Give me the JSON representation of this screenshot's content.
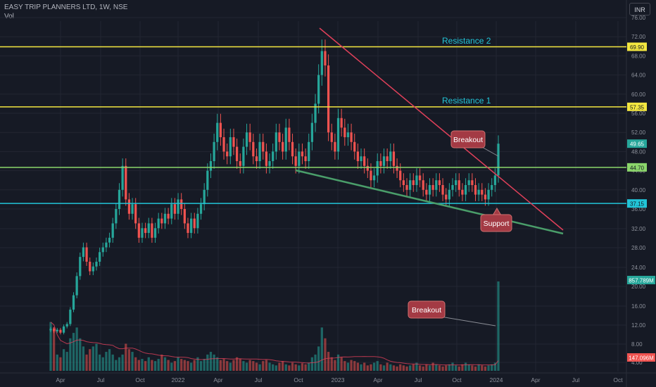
{
  "header": {
    "title": "EASY TRIP PLANNERS LTD, 1W, NSE",
    "volume_label": "Vol",
    "currency": "INR"
  },
  "colors": {
    "background": "#161a25",
    "grid": "#232632",
    "up": "#26a69a",
    "down": "#ef5350",
    "resistance": "#f3e740",
    "level_green": "#8bd66b",
    "support": "#22c5d8",
    "trend_down": "#e0405a",
    "trend_up": "#4a9e6a",
    "callout": "#a33a44",
    "axis_text": "#8d919b"
  },
  "chart_data": {
    "type": "candlestick",
    "timeframe": "1W",
    "x_ticks": [
      "Apr",
      "Jul",
      "Oct",
      "2022",
      "Apr",
      "Jul",
      "Oct",
      "2023",
      "Apr",
      "Jul",
      "Oct",
      "2024",
      "Apr",
      "Jul",
      "Oct"
    ],
    "y_ticks": [
      36,
      40,
      44,
      48,
      52,
      56,
      60,
      64,
      68,
      72,
      76
    ],
    "y_ticks_log_section": [
      4,
      8,
      12,
      16,
      20,
      24,
      28,
      32
    ],
    "price_labels": [
      {
        "value": "69.90",
        "kind": "resistance"
      },
      {
        "value": "57.35",
        "kind": "resistance"
      },
      {
        "value": "49.65",
        "kind": "last"
      },
      {
        "value": "44.70",
        "kind": "level"
      },
      {
        "value": "37.15",
        "kind": "support"
      }
    ],
    "volume_labels": [
      {
        "value": "857.789M",
        "kind": "last_volume"
      },
      {
        "value": "147.096M",
        "kind": "volume_ma"
      }
    ],
    "annotations": {
      "resistance_1": "Resistance 1",
      "resistance_2": "Resistance 2",
      "breakout_price": "Breakout",
      "breakout_volume": "Breakout",
      "support": "Support"
    },
    "horizontal_levels": [
      69.9,
      57.35,
      44.7,
      37.15
    ],
    "last_close": 49.65,
    "weekly_closes": [
      11,
      10.5,
      10.8,
      10.2,
      11.5,
      12,
      15,
      18,
      22,
      26,
      28,
      25,
      23,
      24,
      25,
      27,
      28,
      29,
      30,
      33,
      36,
      40,
      45,
      38,
      35,
      37,
      33,
      30,
      32,
      31,
      33,
      30,
      32,
      34,
      33,
      35,
      34,
      37,
      35,
      38,
      36,
      33,
      31,
      34,
      32,
      35,
      37,
      40,
      44,
      46,
      50,
      54,
      51,
      48,
      47,
      51,
      49,
      46,
      45,
      49,
      52,
      50,
      47,
      46,
      50,
      48,
      45,
      46,
      48,
      52,
      50,
      48,
      53,
      50,
      47,
      45,
      48,
      47,
      46,
      50,
      54,
      58,
      64,
      69,
      66,
      52,
      50,
      48,
      55,
      53,
      51,
      52,
      50,
      48,
      46,
      47,
      45,
      44,
      42,
      43,
      46,
      45,
      47,
      46,
      48,
      45,
      44,
      42,
      41,
      40,
      42,
      41,
      43,
      42,
      40,
      39,
      41,
      40,
      42,
      41,
      39,
      38,
      40,
      41,
      42,
      40,
      39,
      41,
      42,
      41,
      39,
      40,
      39,
      38,
      40,
      41,
      43,
      49.65
    ],
    "weekly_volumes": [
      90,
      80,
      30,
      25,
      40,
      35,
      60,
      70,
      80,
      60,
      45,
      30,
      40,
      45,
      50,
      30,
      25,
      35,
      40,
      30,
      20,
      25,
      30,
      50,
      40,
      35,
      25,
      20,
      22,
      18,
      25,
      20,
      18,
      22,
      30,
      25,
      20,
      15,
      18,
      25,
      22,
      20,
      18,
      15,
      20,
      25,
      18,
      22,
      30,
      35,
      30,
      25,
      20,
      22,
      18,
      15,
      20,
      25,
      22,
      18,
      15,
      20,
      18,
      15,
      12,
      18,
      20,
      15,
      12,
      10,
      15,
      18,
      12,
      10,
      15,
      12,
      10,
      14,
      12,
      15,
      25,
      30,
      45,
      80,
      60,
      35,
      25,
      20,
      30,
      25,
      18,
      15,
      20,
      18,
      15,
      12,
      15,
      10,
      12,
      15,
      18,
      12,
      10,
      15,
      12,
      10,
      8,
      12,
      10,
      8,
      10,
      12,
      15,
      10,
      8,
      12,
      10,
      15,
      12,
      10,
      8,
      10,
      12,
      15,
      10,
      8,
      12,
      15,
      12,
      10,
      8,
      12,
      10,
      8,
      10,
      12,
      15,
      165
    ]
  }
}
